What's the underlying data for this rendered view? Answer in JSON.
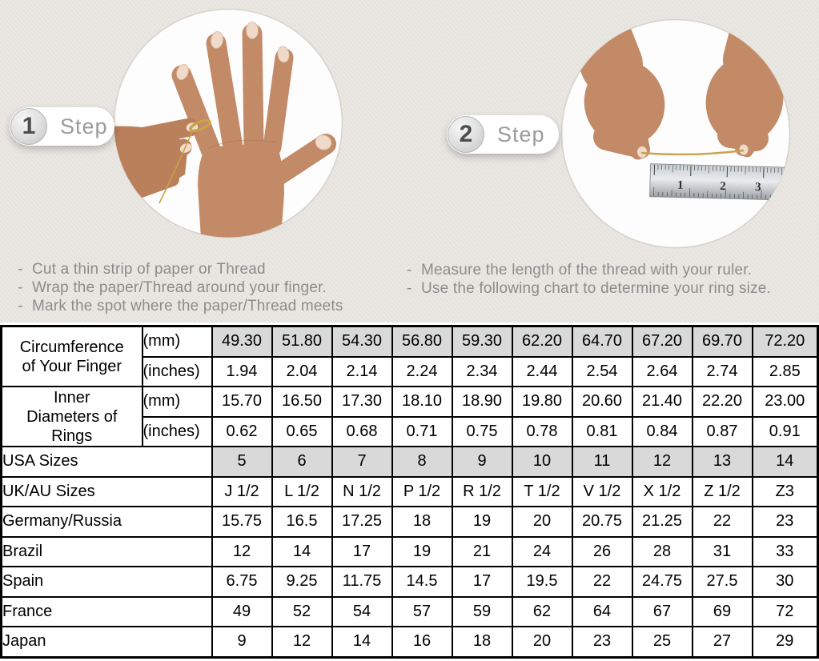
{
  "ui": {
    "bullet": "-"
  },
  "steps": [
    {
      "number": "1",
      "label": "Step",
      "photo": "hand-with-thread-wrapped-around-ring-finger",
      "instructions": [
        "Cut a thin strip of paper or Thread",
        "Wrap the paper/Thread around your finger.",
        "Mark the spot where the paper/Thread meets"
      ]
    },
    {
      "number": "2",
      "label": "Step",
      "photo": "hands-measuring-thread-length-with-ruler",
      "instructions": [
        "Measure the length of the thread with your ruler.",
        "Use the following chart to determine your ring size."
      ]
    }
  ],
  "ruler": {
    "numbers": [
      "1",
      "2",
      "3"
    ]
  },
  "colors": {
    "page_background": "#e9e6e1",
    "table_highlight": "#d9d9d9",
    "table_border": "#000000",
    "instruction_text": "#8c8c8c",
    "thread_gold": "#c9a24b"
  },
  "table": {
    "grouped_rows": [
      {
        "label": "Circumference of Your Finger",
        "rows": [
          {
            "sublabel": "(mm)",
            "highlight": true,
            "values": [
              "49.30",
              "51.80",
              "54.30",
              "56.80",
              "59.30",
              "62.20",
              "64.70",
              "67.20",
              "69.70",
              "72.20"
            ]
          },
          {
            "sublabel": "(inches)",
            "highlight": false,
            "values": [
              "1.94",
              "2.04",
              "2.14",
              "2.24",
              "2.34",
              "2.44",
              "2.54",
              "2.64",
              "2.74",
              "2.85"
            ]
          }
        ]
      },
      {
        "label": "Inner Diameters of Rings",
        "rows": [
          {
            "sublabel": "(mm)",
            "highlight": false,
            "values": [
              "15.70",
              "16.50",
              "17.30",
              "18.10",
              "18.90",
              "19.80",
              "20.60",
              "21.40",
              "22.20",
              "23.00"
            ]
          },
          {
            "sublabel": "(inches)",
            "highlight": false,
            "values": [
              "0.62",
              "0.65",
              "0.68",
              "0.71",
              "0.75",
              "0.78",
              "0.81",
              "0.84",
              "0.87",
              "0.91"
            ]
          }
        ]
      }
    ],
    "rows": [
      {
        "label": "USA Sizes",
        "highlight": true,
        "values": [
          "5",
          "6",
          "7",
          "8",
          "9",
          "10",
          "11",
          "12",
          "13",
          "14"
        ]
      },
      {
        "label": "UK/AU Sizes",
        "highlight": false,
        "values": [
          "J 1/2",
          "L 1/2",
          "N 1/2",
          "P 1/2",
          "R 1/2",
          "T 1/2",
          "V 1/2",
          "X 1/2",
          "Z 1/2",
          "Z3"
        ]
      },
      {
        "label": "Germany/Russia",
        "highlight": false,
        "values": [
          "15.75",
          "16.5",
          "17.25",
          "18",
          "19",
          "20",
          "20.75",
          "21.25",
          "22",
          "23"
        ]
      },
      {
        "label": "Brazil",
        "highlight": false,
        "values": [
          "12",
          "14",
          "17",
          "19",
          "21",
          "24",
          "26",
          "28",
          "31",
          "33"
        ]
      },
      {
        "label": "Spain",
        "highlight": false,
        "values": [
          "6.75",
          "9.25",
          "11.75",
          "14.5",
          "17",
          "19.5",
          "22",
          "24.75",
          "27.5",
          "30"
        ]
      },
      {
        "label": "France",
        "highlight": false,
        "values": [
          "49",
          "52",
          "54",
          "57",
          "59",
          "62",
          "64",
          "67",
          "69",
          "72"
        ]
      },
      {
        "label": "Japan",
        "highlight": false,
        "values": [
          "9",
          "12",
          "14",
          "16",
          "18",
          "20",
          "23",
          "25",
          "27",
          "29"
        ]
      }
    ]
  }
}
